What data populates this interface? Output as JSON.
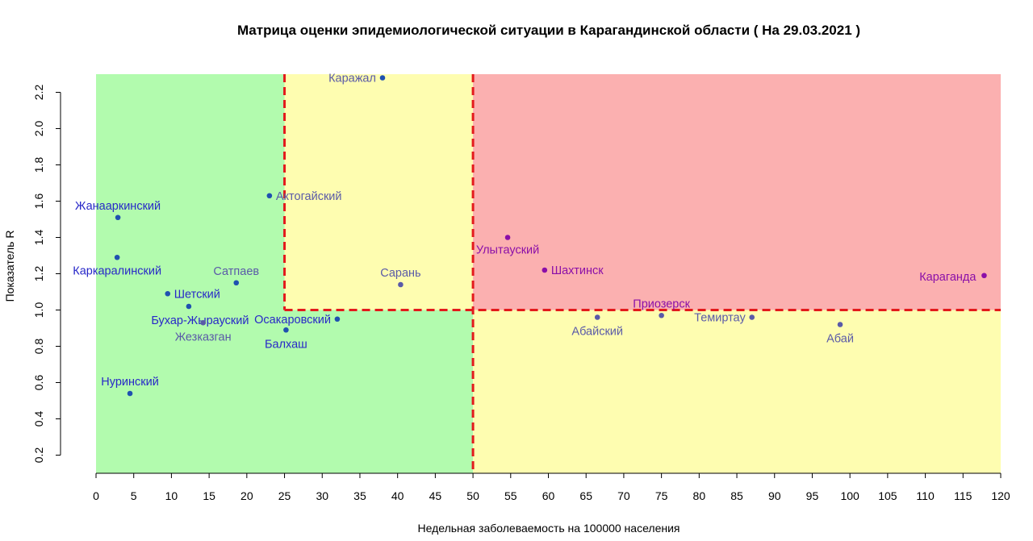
{
  "chart_data": {
    "type": "scatter",
    "title": "Матрица оценки эпидемиологической ситуации в Карагандинской области ( На 29.03.2021 )",
    "xlabel": "Недельная заболеваемость на 100000 населения",
    "ylabel": "Показатель R",
    "xlim": [
      0,
      120
    ],
    "ylim": [
      0.1,
      2.3
    ],
    "x_ticks": [
      "0",
      "5",
      "10",
      "15",
      "20",
      "25",
      "30",
      "35",
      "40",
      "45",
      "50",
      "55",
      "60",
      "65",
      "70",
      "75",
      "80",
      "85",
      "90",
      "95",
      "100",
      "105",
      "110",
      "115",
      "120"
    ],
    "y_ticks": [
      "0.2",
      "0.4",
      "0.6",
      "0.8",
      "1.0",
      "1.2",
      "1.4",
      "1.6",
      "1.8",
      "2.0",
      "2.2"
    ],
    "thresholds": {
      "x_inner": 25,
      "x_main": 50,
      "y_main": 1.0
    },
    "zone_colors": {
      "green": "#b2fbae",
      "yellow": "#fefdb0",
      "red": "#fbb0b0",
      "threshold_line": "#e31a1c"
    },
    "grid": false,
    "points": [
      {
        "label": "Каражал",
        "x": 38.0,
        "y": 2.28,
        "color": "#1f51b0",
        "label_color": "#5a5aa8"
      },
      {
        "label": "Актогайский",
        "x": 23.0,
        "y": 1.63,
        "color": "#1f51b0",
        "label_color": "#5a5aa8"
      },
      {
        "label": "Жанааркинский",
        "x": 2.9,
        "y": 1.51,
        "color": "#1f51b0",
        "label_color": "#2828c8"
      },
      {
        "label": "Каркаралинский",
        "x": 2.8,
        "y": 1.29,
        "color": "#1f51b0",
        "label_color": "#2828c8"
      },
      {
        "label": "Сатпаев",
        "x": 18.6,
        "y": 1.15,
        "color": "#1f51b0",
        "label_color": "#5a5aa8"
      },
      {
        "label": "Сарань",
        "x": 40.4,
        "y": 1.14,
        "color": "#5a5aa8",
        "label_color": "#5a5aa8"
      },
      {
        "label": "Шетский",
        "x": 9.5,
        "y": 1.09,
        "color": "#1f51b0",
        "label_color": "#2828c8"
      },
      {
        "label": "Бухар-Жырауский",
        "x": 12.3,
        "y": 1.02,
        "color": "#1f51b0",
        "label_color": "#2828c8"
      },
      {
        "label": "Жезказган",
        "x": 14.2,
        "y": 0.93,
        "color": "#5a5aa8",
        "label_color": "#5a5aa8"
      },
      {
        "label": "Осакаровский",
        "x": 32.0,
        "y": 0.95,
        "color": "#1f51b0",
        "label_color": "#2828c8"
      },
      {
        "label": "Балхаш",
        "x": 25.2,
        "y": 0.89,
        "color": "#1f51b0",
        "label_color": "#2828c8"
      },
      {
        "label": "Нуринский",
        "x": 4.5,
        "y": 0.54,
        "color": "#1f51b0",
        "label_color": "#2828c8"
      },
      {
        "label": "Улытауский",
        "x": 54.6,
        "y": 1.4,
        "color": "#8b0fa8",
        "label_color": "#8b0fa8"
      },
      {
        "label": "Шахтинск",
        "x": 59.5,
        "y": 1.22,
        "color": "#8b0fa8",
        "label_color": "#8b0fa8"
      },
      {
        "label": "Караганда",
        "x": 117.8,
        "y": 1.19,
        "color": "#8b0fa8",
        "label_color": "#8b0fa8"
      },
      {
        "label": "Приозерск",
        "x": 75.0,
        "y": 0.97,
        "color": "#5a5aa8",
        "label_color": "#8b0fa8"
      },
      {
        "label": "Абайский",
        "x": 66.5,
        "y": 0.96,
        "color": "#5a5aa8",
        "label_color": "#5a5aa8"
      },
      {
        "label": "Темиртау",
        "x": 87.0,
        "y": 0.96,
        "color": "#5a5aa8",
        "label_color": "#5a5aa8"
      },
      {
        "label": "Абай",
        "x": 98.7,
        "y": 0.92,
        "color": "#5a5aa8",
        "label_color": "#5a5aa8"
      }
    ]
  }
}
